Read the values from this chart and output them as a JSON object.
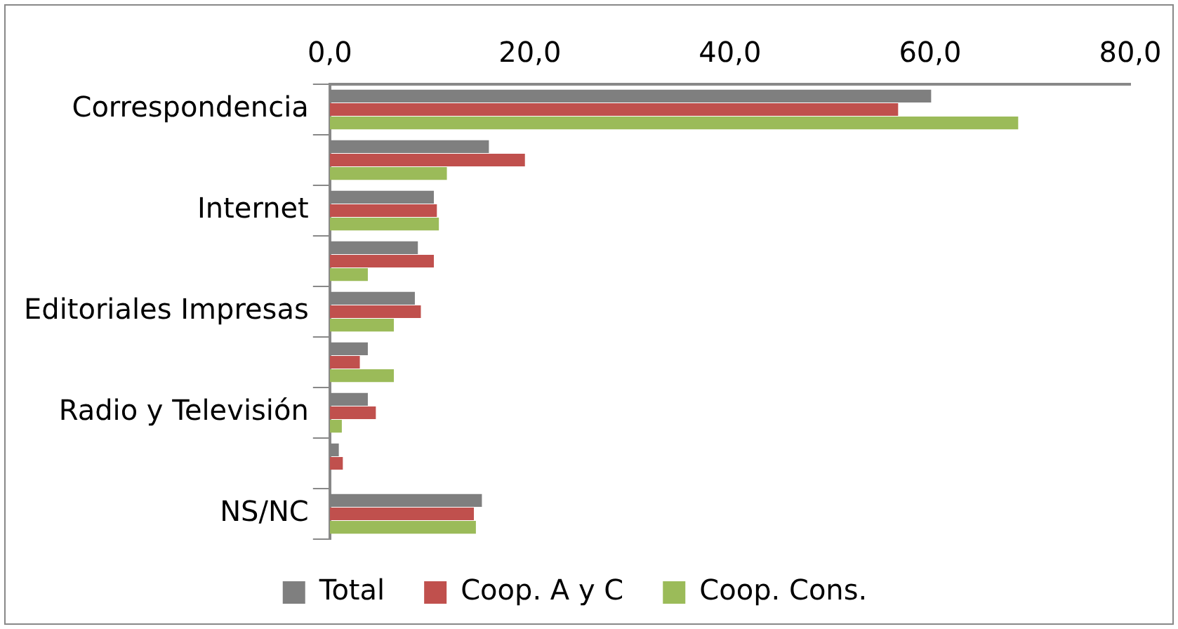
{
  "chart_data": {
    "type": "bar",
    "orientation": "horizontal",
    "categories": [
      "Correspondencia",
      null,
      "Internet",
      null,
      "Editoriales Impresas",
      null,
      "Radio y Televisión",
      null,
      "NS/NC"
    ],
    "series": [
      {
        "name": "Total",
        "color": "#7f7f7f",
        "values": [
          60.1,
          15.9,
          10.4,
          8.8,
          8.5,
          3.8,
          3.8,
          0.9,
          15.2
        ]
      },
      {
        "name": "Coop. A y C",
        "color": "#c0504d",
        "values": [
          56.8,
          19.5,
          10.7,
          10.4,
          9.1,
          3.0,
          4.6,
          1.3,
          14.4
        ]
      },
      {
        "name": "Coop. Cons.",
        "color": "#9bbb59",
        "values": [
          68.8,
          11.7,
          10.9,
          3.8,
          6.4,
          6.4,
          1.2,
          0,
          14.6
        ]
      }
    ],
    "xlim": [
      0,
      80
    ],
    "xticks": [
      {
        "value": 0,
        "label": "0,0"
      },
      {
        "value": 20,
        "label": "20,0"
      },
      {
        "value": 40,
        "label": "40,0"
      },
      {
        "value": 60,
        "label": "60,0"
      },
      {
        "value": 80,
        "label": "80,0"
      }
    ],
    "grid": false,
    "legend": "bottom"
  }
}
